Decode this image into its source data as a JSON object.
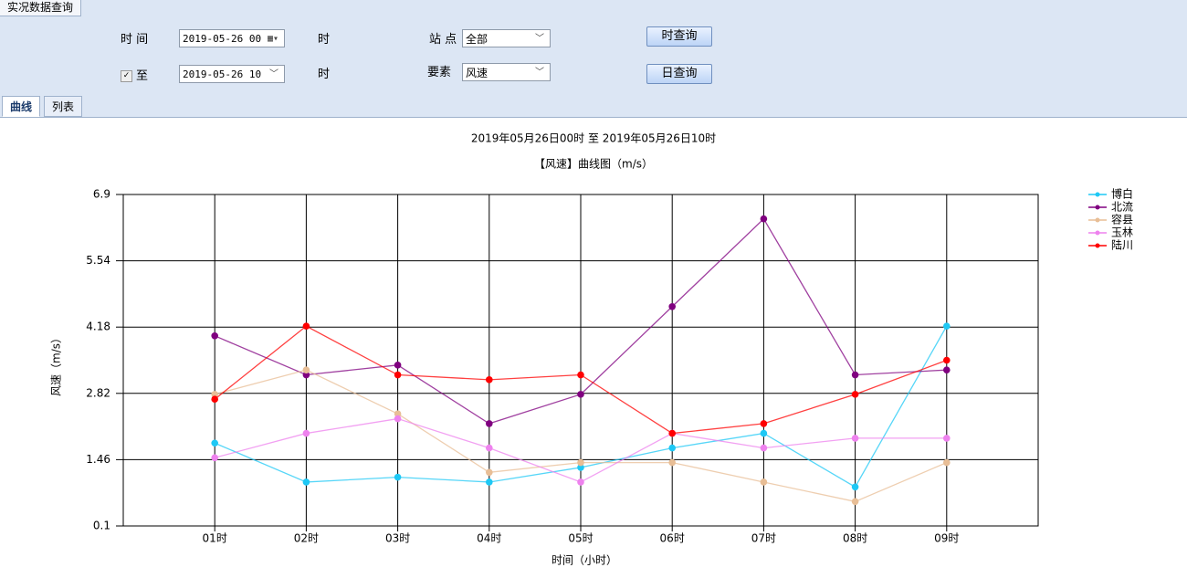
{
  "header": {
    "title": "实况数据查询"
  },
  "form": {
    "time_label": "时 间",
    "start_date": "2019-05-26 00",
    "hour_unit_1": "时",
    "station_label": "站 点",
    "station_value": "全部",
    "hour_query_button": "时查询",
    "end_checked": true,
    "end_label": "至",
    "end_date": "2019-05-26 10",
    "hour_unit_2": "时",
    "element_label": "要素",
    "element_value": "风速",
    "day_query_button": "日查询"
  },
  "tabs": [
    "曲线",
    "列表"
  ],
  "chart_data": {
    "type": "line",
    "title": "2019年05月26日00时 至 2019年05月26日10时",
    "subtitle": "【风速】曲线图（m/s）",
    "x_label": "时间（小时）",
    "y_label": "风速（m/s）",
    "categories": [
      "01时",
      "02时",
      "03时",
      "04时",
      "05时",
      "06时",
      "07时",
      "08时",
      "09时"
    ],
    "series": [
      {
        "name": "博白",
        "color": "#1ec8f5",
        "values": [
          1.8,
          1.0,
          1.1,
          1.0,
          1.3,
          1.7,
          2.0,
          0.9,
          4.2
        ]
      },
      {
        "name": "北流",
        "color": "#800080",
        "values": [
          4.0,
          3.2,
          3.4,
          2.2,
          2.8,
          4.6,
          6.4,
          3.2,
          3.3
        ]
      },
      {
        "name": "容县",
        "color": "#e8be96",
        "values": [
          2.8,
          3.3,
          2.4,
          1.2,
          1.4,
          1.4,
          1.0,
          0.6,
          1.4
        ]
      },
      {
        "name": "玉林",
        "color": "#ee82ee",
        "values": [
          1.5,
          2.0,
          2.3,
          1.7,
          1.0,
          2.0,
          1.7,
          1.9,
          1.9
        ]
      },
      {
        "name": "陆川",
        "color": "#ff0000",
        "values": [
          2.7,
          4.2,
          3.2,
          3.1,
          3.2,
          2.0,
          2.2,
          2.8,
          3.5
        ]
      }
    ],
    "ylim": [
      0.1,
      6.9
    ],
    "yticks": [
      0.1,
      1.46,
      2.82,
      4.18,
      5.54,
      6.9
    ],
    "grid": true,
    "legend": "right"
  }
}
